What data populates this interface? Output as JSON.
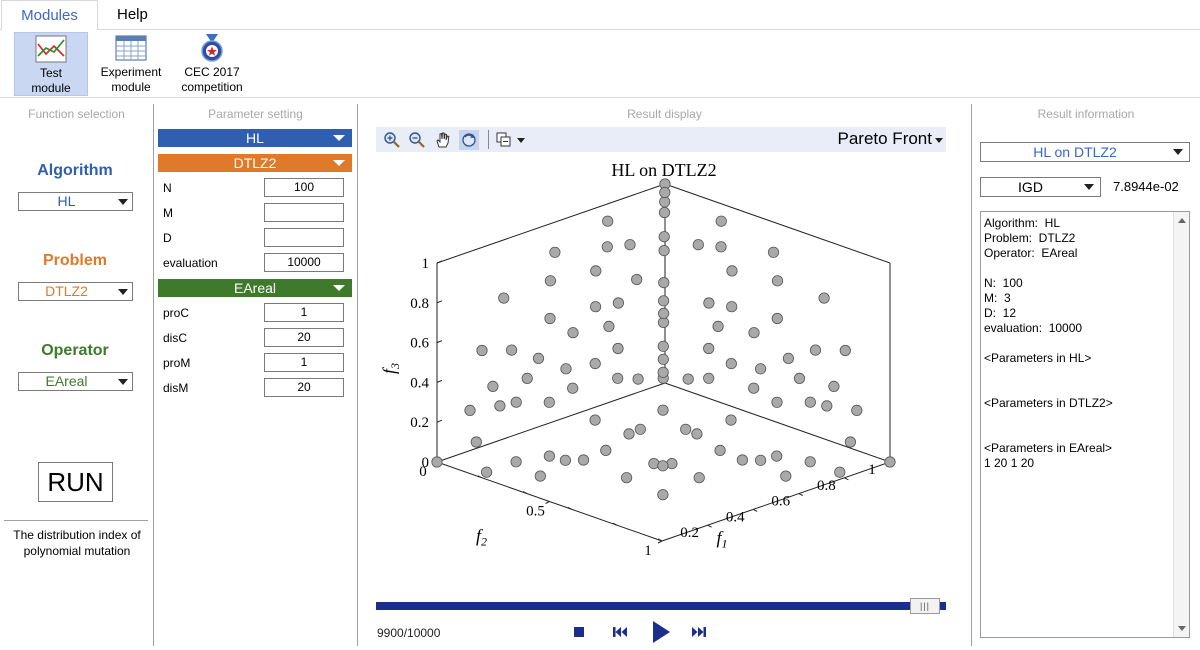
{
  "menu": {
    "tabs": [
      "Modules",
      "Help"
    ]
  },
  "ribbon": {
    "buttons": [
      {
        "label1": "Test",
        "label2": "module",
        "icon": "line-chart-icon"
      },
      {
        "label1": "Experiment",
        "label2": "module",
        "icon": "table-icon"
      },
      {
        "label1": "CEC 2017",
        "label2": "competition",
        "icon": "medal-icon"
      }
    ]
  },
  "panels": {
    "function_selection": "Function selection",
    "parameter_setting": "Parameter setting",
    "result_display": "Result display",
    "result_information": "Result information"
  },
  "function_selection": {
    "algorithm_label": "Algorithm",
    "algorithm_value": "HL",
    "problem_label": "Problem",
    "problem_value": "DTLZ2",
    "operator_label": "Operator",
    "operator_value": "EAreal",
    "run_label": "RUN",
    "hint": "The distribution index of polynomial mutation",
    "colors": {
      "algorithm": "#2f5fae",
      "problem": "#e07a2b",
      "operator": "#3f7a2c"
    }
  },
  "parameter_setting": {
    "algorithm_bar": "HL",
    "problem_bar": "DTLZ2",
    "operator_bar": "EAreal",
    "problem_params": [
      {
        "name": "N",
        "value": "100"
      },
      {
        "name": "M",
        "value": ""
      },
      {
        "name": "D",
        "value": ""
      },
      {
        "name": "evaluation",
        "value": "10000"
      }
    ],
    "operator_params": [
      {
        "name": "proC",
        "value": "1"
      },
      {
        "name": "disC",
        "value": "20"
      },
      {
        "name": "proM",
        "value": "1"
      },
      {
        "name": "disM",
        "value": "20"
      }
    ],
    "colors": {
      "algorithm": "#2f5fae",
      "problem": "#e07a2b",
      "operator": "#3f7a2c"
    }
  },
  "result_display": {
    "view_selector": "Pareto Front",
    "toolbar_icons": [
      "zoom-in-icon",
      "zoom-out-icon",
      "pan-hand-icon",
      "rotate-icon",
      "data-cursor-icon"
    ],
    "progress_text": "9900/10000",
    "progress": {
      "current": 9900,
      "total": 10000
    },
    "controls": [
      "stop-icon",
      "step-back-icon",
      "play-icon",
      "step-forward-icon"
    ]
  },
  "result_information": {
    "selector": "HL on DTLZ2",
    "metric": "IGD",
    "metric_value": "7.8944e-02",
    "info_lines": [
      "Algorithm:  HL",
      "Problem:  DTLZ2",
      "Operator:  EAreal",
      "",
      "N:  100",
      "M:  3",
      "D:  12",
      "evaluation:  10000",
      "",
      "<Parameters in HL>",
      "",
      "",
      "<Parameters in DTLZ2>",
      "",
      "",
      "<Parameters in EAreal>",
      "1 20 1 20"
    ]
  },
  "chart_data": {
    "type": "scatter",
    "projection": "3d",
    "title": "HL on DTLZ2",
    "xlabel": "f1",
    "ylabel": "f2",
    "zlabel": "f3",
    "xlim": [
      0,
      1
    ],
    "ylim": [
      0,
      1
    ],
    "zlim": [
      0,
      1
    ],
    "xticks": [
      "0.2",
      "0.4",
      "0.6",
      "0.8",
      "1"
    ],
    "yticks": [
      "0",
      "0.5",
      "1"
    ],
    "zticks": [
      "0",
      "0.2",
      "0.4",
      "0.6",
      "0.8",
      "1"
    ],
    "marker_color": "#a9a9a9",
    "points": [
      [
        0.999,
        0.0,
        0.0
      ],
      [
        0.0,
        0.999,
        0.0
      ],
      [
        0.0,
        0.0,
        0.999
      ],
      [
        0.7,
        0.7,
        0.0
      ],
      [
        0.7,
        0.0,
        0.7
      ],
      [
        0.0,
        0.7,
        0.7
      ],
      [
        0.55,
        0.55,
        0.62
      ],
      [
        0.45,
        0.45,
        0.77
      ],
      [
        0.3,
        0.6,
        0.74
      ],
      [
        0.6,
        0.3,
        0.74
      ],
      [
        0.25,
        0.25,
        0.93
      ],
      [
        0.15,
        0.4,
        0.9
      ],
      [
        0.4,
        0.15,
        0.9
      ],
      [
        0.1,
        0.1,
        0.99
      ],
      [
        0.2,
        0.7,
        0.68
      ],
      [
        0.7,
        0.2,
        0.68
      ],
      [
        0.85,
        0.35,
        0.38
      ],
      [
        0.35,
        0.85,
        0.38
      ],
      [
        0.9,
        0.15,
        0.4
      ],
      [
        0.15,
        0.9,
        0.4
      ],
      [
        0.8,
        0.55,
        0.2
      ],
      [
        0.55,
        0.8,
        0.2
      ],
      [
        0.95,
        0.3,
        0.1
      ],
      [
        0.3,
        0.95,
        0.1
      ],
      [
        0.6,
        0.6,
        0.5
      ],
      [
        0.5,
        0.7,
        0.5
      ],
      [
        0.7,
        0.5,
        0.5
      ],
      [
        0.4,
        0.8,
        0.45
      ],
      [
        0.8,
        0.4,
        0.45
      ],
      [
        0.5,
        0.5,
        0.7
      ],
      [
        0.65,
        0.65,
        0.38
      ],
      [
        0.75,
        0.6,
        0.28
      ],
      [
        0.6,
        0.75,
        0.28
      ],
      [
        0.9,
        0.4,
        0.15
      ],
      [
        0.4,
        0.9,
        0.15
      ],
      [
        0.85,
        0.5,
        0.15
      ],
      [
        0.5,
        0.85,
        0.15
      ],
      [
        0.95,
        0.1,
        0.28
      ],
      [
        0.1,
        0.95,
        0.28
      ],
      [
        0.98,
        0.2,
        0.02
      ],
      [
        0.2,
        0.98,
        0.02
      ],
      [
        0.3,
        0.3,
        0.9
      ],
      [
        0.35,
        0.55,
        0.76
      ],
      [
        0.55,
        0.35,
        0.76
      ],
      [
        0.2,
        0.5,
        0.84
      ],
      [
        0.5,
        0.2,
        0.84
      ],
      [
        0.1,
        0.6,
        0.79
      ],
      [
        0.6,
        0.1,
        0.79
      ],
      [
        0.05,
        0.85,
        0.52
      ],
      [
        0.85,
        0.05,
        0.52
      ],
      [
        0.25,
        0.8,
        0.54
      ],
      [
        0.8,
        0.25,
        0.54
      ],
      [
        0.45,
        0.65,
        0.61
      ],
      [
        0.65,
        0.45,
        0.61
      ],
      [
        0.72,
        0.68,
        0.15
      ],
      [
        0.68,
        0.72,
        0.15
      ],
      [
        0.9,
        0.25,
        0.36
      ],
      [
        0.25,
        0.9,
        0.36
      ],
      [
        0.78,
        0.35,
        0.52
      ],
      [
        0.35,
        0.78,
        0.52
      ],
      [
        0.05,
        0.3,
        0.95
      ],
      [
        0.3,
        0.05,
        0.95
      ],
      [
        0.02,
        0.5,
        0.86
      ],
      [
        0.5,
        0.02,
        0.86
      ],
      [
        0.92,
        0.38,
        0.05
      ],
      [
        0.38,
        0.92,
        0.05
      ],
      [
        0.58,
        0.58,
        0.58
      ],
      [
        0.42,
        0.72,
        0.55
      ],
      [
        0.72,
        0.42,
        0.55
      ],
      [
        0.62,
        0.72,
        0.3
      ],
      [
        0.72,
        0.62,
        0.3
      ],
      [
        0.88,
        0.45,
        0.14
      ],
      [
        0.45,
        0.88,
        0.14
      ],
      [
        0.15,
        0.15,
        0.97
      ],
      [
        0.2,
        0.35,
        0.91
      ],
      [
        0.35,
        0.2,
        0.91
      ],
      [
        0.82,
        0.15,
        0.55
      ],
      [
        0.15,
        0.82,
        0.55
      ],
      [
        0.66,
        0.55,
        0.5
      ],
      [
        0.55,
        0.66,
        0.5
      ],
      [
        0.97,
        0.15,
        0.15
      ],
      [
        0.15,
        0.97,
        0.15
      ],
      [
        0.78,
        0.62,
        0.08
      ],
      [
        0.62,
        0.78,
        0.08
      ],
      [
        0.3,
        0.7,
        0.65
      ],
      [
        0.7,
        0.3,
        0.65
      ],
      [
        0.48,
        0.48,
        0.73
      ],
      [
        0.38,
        0.62,
        0.68
      ],
      [
        0.62,
        0.38,
        0.68
      ],
      [
        0.85,
        0.25,
        0.46
      ],
      [
        0.25,
        0.85,
        0.46
      ],
      [
        0.05,
        0.05,
        0.99
      ],
      [
        0.7,
        0.7,
        0.14
      ],
      [
        0.92,
        0.2,
        0.33
      ],
      [
        0.2,
        0.92,
        0.33
      ],
      [
        0.5,
        0.8,
        0.33
      ],
      [
        0.8,
        0.5,
        0.33
      ],
      [
        0.4,
        0.4,
        0.82
      ],
      [
        0.6,
        0.6,
        0.53
      ],
      [
        0.33,
        0.45,
        0.83
      ]
    ]
  }
}
